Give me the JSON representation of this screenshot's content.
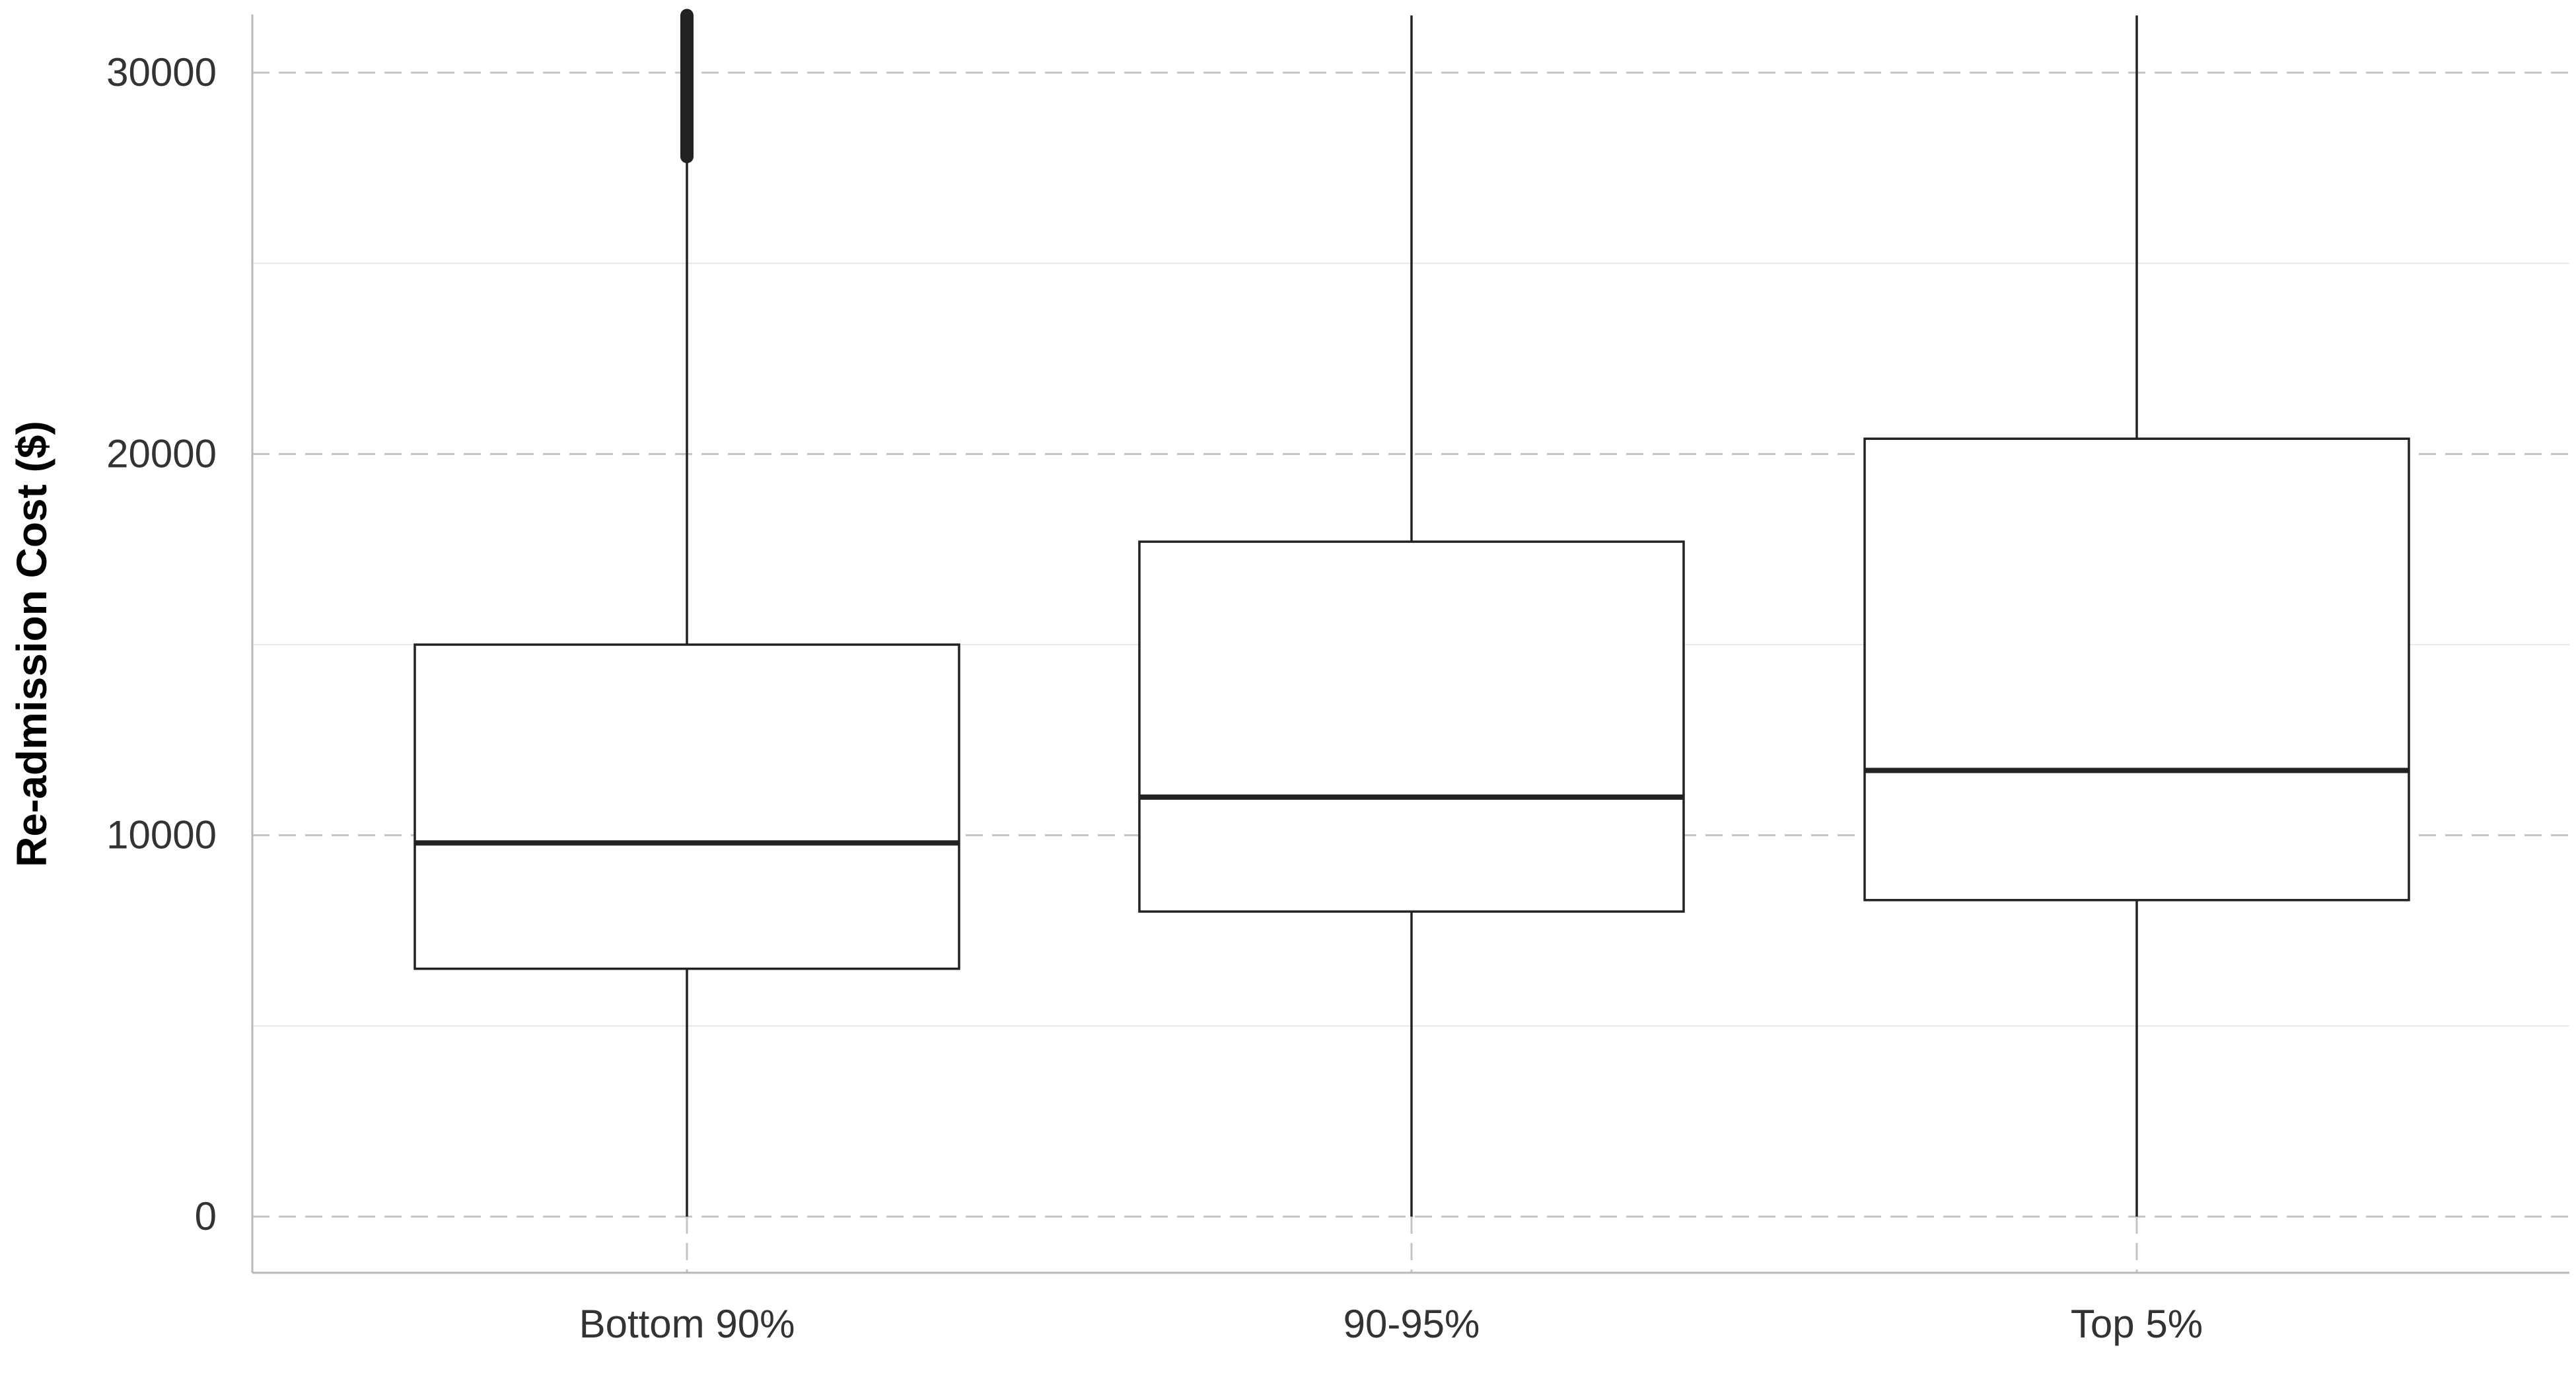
{
  "chart_data": {
    "type": "boxplot",
    "title": "",
    "xlabel": "",
    "ylabel": "Re-admission Cost ($)",
    "ylim": [
      -1500,
      31500
    ],
    "y_ticks": [
      0,
      10000,
      20000,
      30000
    ],
    "y_tick_labels": [
      "0",
      "10000",
      "20000",
      "30000"
    ],
    "grid": {
      "major": "dashed",
      "minor": "solid"
    },
    "categories": [
      "Bottom 90%",
      "90-95%",
      "Top 5%"
    ],
    "boxes": [
      {
        "category": "Bottom 90%",
        "whisker_low": 0,
        "q1": 6500,
        "median": 9800,
        "q3": 15000,
        "whisker_high": 27800,
        "outliers_from": 27800,
        "outliers_to": 31500
      },
      {
        "category": "90-95%",
        "whisker_low": 0,
        "q1": 8000,
        "median": 11000,
        "q3": 17700,
        "whisker_high": 31500
      },
      {
        "category": "Top 5%",
        "whisker_low": 0,
        "q1": 8300,
        "median": 11700,
        "q3": 20400,
        "whisker_high": 31500
      }
    ],
    "colors": {
      "box_fill": "#ffffff",
      "box_stroke": "#222222",
      "grid_major": "#c4c4c4",
      "grid_minor": "#e8e8e8",
      "axis": "#b8b8b8"
    }
  }
}
